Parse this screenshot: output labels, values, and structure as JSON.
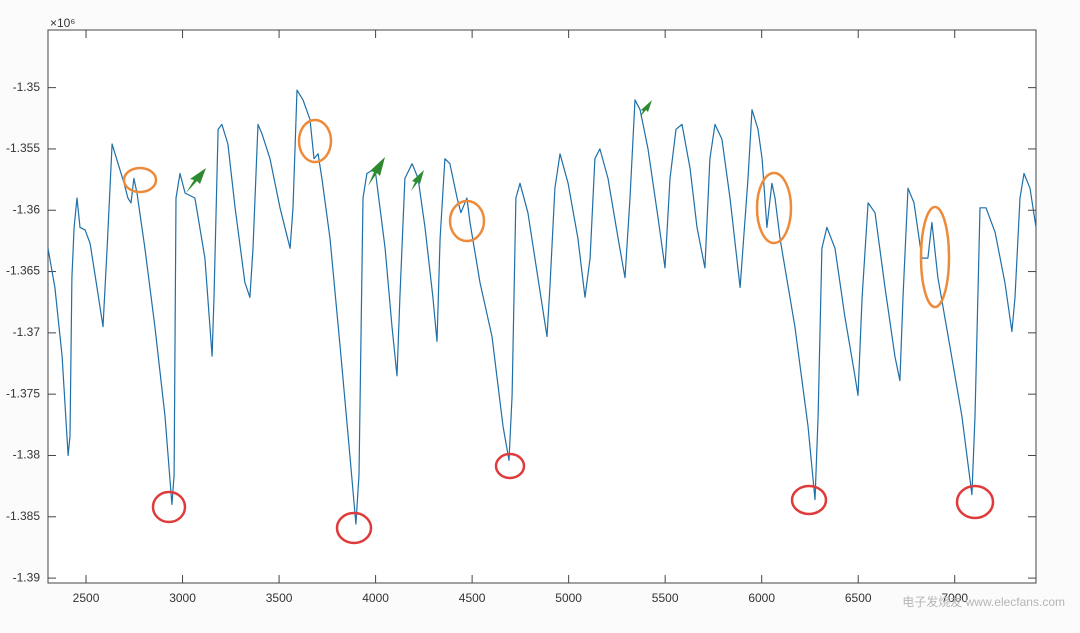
{
  "chart_data": {
    "type": "line",
    "exponent_label": "×10⁶",
    "x": [
      2303,
      2339,
      2376,
      2407,
      2417,
      2427,
      2438,
      2453,
      2469,
      2495,
      2521,
      2557,
      2588,
      2609,
      2635,
      2666,
      2697,
      2717,
      2733,
      2748,
      2764,
      2805,
      2857,
      2909,
      2945,
      2956,
      2966,
      2987,
      3013,
      3064,
      3116,
      3153,
      3163,
      3184,
      3204,
      3235,
      3272,
      3323,
      3349,
      3365,
      3391,
      3412,
      3453,
      3505,
      3557,
      3572,
      3593,
      3624,
      3660,
      3681,
      3702,
      3722,
      3764,
      3816,
      3867,
      3898,
      3914,
      3935,
      3955,
      3997,
      4049,
      4085,
      4111,
      4126,
      4152,
      4189,
      4220,
      4256,
      4297,
      4318,
      4334,
      4359,
      4385,
      4422,
      4442,
      4473,
      4489,
      4541,
      4603,
      4660,
      4691,
      4707,
      4727,
      4748,
      4789,
      4841,
      4888,
      4903,
      4929,
      4955,
      4997,
      5048,
      5085,
      5111,
      5136,
      5162,
      5204,
      5256,
      5292,
      5318,
      5344,
      5370,
      5411,
      5463,
      5499,
      5525,
      5556,
      5587,
      5629,
      5665,
      5706,
      5732,
      5758,
      5794,
      5836,
      5888,
      5929,
      5950,
      5981,
      6002,
      6027,
      6053,
      6069,
      6095,
      6172,
      6240,
      6276,
      6292,
      6312,
      6338,
      6380,
      6431,
      6483,
      6499,
      6520,
      6551,
      6587,
      6639,
      6690,
      6716,
      6732,
      6758,
      6789,
      6830,
      6861,
      6882,
      6913,
      6975,
      7037,
      7089,
      7105,
      7131,
      7162,
      7209,
      7260,
      7296,
      7312,
      7338,
      7359,
      7390,
      7421
    ],
    "values": [
      -1.3631,
      -1.3663,
      -1.3719,
      -1.38,
      -1.3784,
      -1.3655,
      -1.3614,
      -1.359,
      -1.3614,
      -1.3616,
      -1.3627,
      -1.3663,
      -1.3695,
      -1.3631,
      -1.3546,
      -1.3562,
      -1.3578,
      -1.359,
      -1.3594,
      -1.3574,
      -1.3586,
      -1.3631,
      -1.3695,
      -1.3768,
      -1.384,
      -1.3816,
      -1.359,
      -1.357,
      -1.3586,
      -1.359,
      -1.3639,
      -1.3719,
      -1.3671,
      -1.3534,
      -1.353,
      -1.3546,
      -1.3598,
      -1.3659,
      -1.3671,
      -1.3631,
      -1.353,
      -1.3538,
      -1.3558,
      -1.3598,
      -1.3631,
      -1.3598,
      -1.3502,
      -1.351,
      -1.3526,
      -1.3558,
      -1.3554,
      -1.3574,
      -1.3623,
      -1.3711,
      -1.38,
      -1.3856,
      -1.3816,
      -1.359,
      -1.357,
      -1.3566,
      -1.3631,
      -1.3695,
      -1.3735,
      -1.3671,
      -1.3574,
      -1.3562,
      -1.3574,
      -1.3614,
      -1.3671,
      -1.3707,
      -1.3623,
      -1.3558,
      -1.3562,
      -1.359,
      -1.3602,
      -1.359,
      -1.361,
      -1.3659,
      -1.3703,
      -1.3776,
      -1.3804,
      -1.3751,
      -1.359,
      -1.3578,
      -1.3602,
      -1.3655,
      -1.3703,
      -1.3663,
      -1.3582,
      -1.3554,
      -1.3578,
      -1.3623,
      -1.3671,
      -1.3639,
      -1.3558,
      -1.355,
      -1.3574,
      -1.3623,
      -1.3655,
      -1.359,
      -1.351,
      -1.3518,
      -1.355,
      -1.3606,
      -1.3647,
      -1.3574,
      -1.3534,
      -1.353,
      -1.3566,
      -1.3614,
      -1.3647,
      -1.3558,
      -1.353,
      -1.3542,
      -1.359,
      -1.3663,
      -1.3574,
      -1.3518,
      -1.3534,
      -1.3558,
      -1.3614,
      -1.3578,
      -1.359,
      -1.3623,
      -1.3695,
      -1.3776,
      -1.3836,
      -1.3768,
      -1.3631,
      -1.3614,
      -1.3631,
      -1.3687,
      -1.3735,
      -1.3751,
      -1.3671,
      -1.3594,
      -1.3602,
      -1.3663,
      -1.3719,
      -1.3739,
      -1.3671,
      -1.3582,
      -1.3594,
      -1.3639,
      -1.3639,
      -1.361,
      -1.3655,
      -1.3711,
      -1.3768,
      -1.3832,
      -1.3768,
      -1.3598,
      -1.3598,
      -1.3618,
      -1.3659,
      -1.3699,
      -1.3671,
      -1.359,
      -1.357,
      -1.3582,
      -1.3614
    ],
    "color": "#1f6fa8",
    "xlim": [
      2303,
      7421
    ],
    "ylim": [
      -1.3904,
      -1.3453
    ],
    "xticks": [
      2500,
      3000,
      3500,
      4000,
      4500,
      5000,
      5500,
      6000,
      6500,
      7000
    ],
    "yticks": [
      -1.35,
      -1.355,
      -1.36,
      -1.365,
      -1.37,
      -1.375,
      -1.38,
      -1.385,
      -1.39
    ],
    "grid": false
  },
  "watermark": "电子发烧友 www.elecfans.com"
}
